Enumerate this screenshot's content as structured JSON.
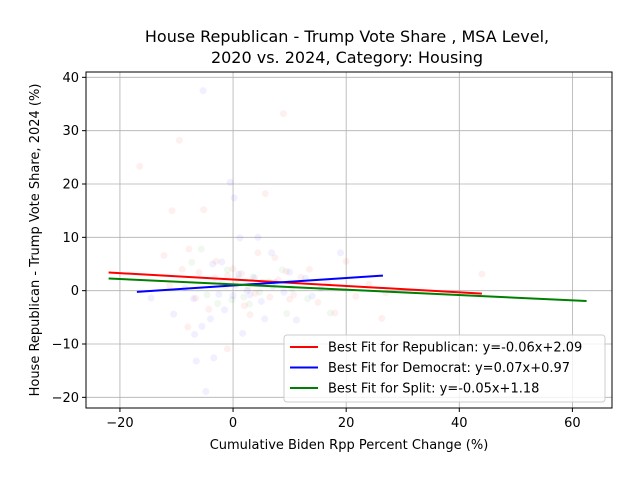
{
  "chart_data": {
    "type": "scatter",
    "title": "House Republican - Trump Vote Share , MSA Level,\n2020 vs. 2024, Category: Housing",
    "xlabel": "Cumulative Biden Rpp Percent Change (%)",
    "ylabel": "House Republican - Trump Vote Share, 2024 (%)",
    "xlim": [
      -26,
      67
    ],
    "ylim": [
      -22,
      41
    ],
    "xticks": [
      -20,
      0,
      20,
      40,
      60
    ],
    "yticks": [
      -20,
      -10,
      0,
      10,
      20,
      30,
      40
    ],
    "grid": true,
    "legend_position": "lower-right",
    "series": [
      {
        "name": "Republican",
        "color": "#ff0000",
        "points": [
          [
            -16.5,
            23.3
          ],
          [
            -9.5,
            28.2
          ],
          [
            -10.8,
            15
          ],
          [
            -5.2,
            15.2
          ],
          [
            5.7,
            18.2
          ],
          [
            8.9,
            33.2
          ],
          [
            -7.8,
            7.8
          ],
          [
            -12.2,
            6.6
          ],
          [
            -9.0,
            4.0
          ],
          [
            -6.0,
            3.4
          ],
          [
            -3.2,
            2.4
          ],
          [
            -2.0,
            1.5
          ],
          [
            -1.0,
            2.8
          ],
          [
            0.5,
            1.0
          ],
          [
            1.5,
            3.2
          ],
          [
            2.7,
            0.8
          ],
          [
            3.9,
            -0.5
          ],
          [
            5.2,
            1.6
          ],
          [
            6.5,
            -1.2
          ],
          [
            8.0,
            2.0
          ],
          [
            9.4,
            3.6
          ],
          [
            10.7,
            -0.8
          ],
          [
            12.0,
            2.5
          ],
          [
            13.5,
            4.0
          ],
          [
            15.0,
            -2.2
          ],
          [
            16.7,
            1.5
          ],
          [
            18.0,
            -4.2
          ],
          [
            20.0,
            5.5
          ],
          [
            21.7,
            -1.1
          ],
          [
            24.0,
            1.2
          ],
          [
            26.3,
            -5.2
          ],
          [
            27.0,
            -0.4
          ],
          [
            44.0,
            3.1
          ],
          [
            -1.0,
            -10.9
          ],
          [
            -4.3,
            -3.5
          ],
          [
            -8.0,
            -6.8
          ],
          [
            3.0,
            -4.5
          ],
          [
            7.4,
            6.2
          ],
          [
            -3.0,
            5.5
          ],
          [
            0.0,
            4.1
          ],
          [
            2.0,
            -2.8
          ],
          [
            -6.6,
            -1.4
          ],
          [
            10.0,
            -1.6
          ],
          [
            4.4,
            7.1
          ],
          [
            -11.2,
            1.0
          ]
        ],
        "fit": {
          "slope": -0.06,
          "intercept": 2.09,
          "x_range": [
            -22,
            44
          ],
          "label": "Best Fit for Republican: y=-0.06x+2.09"
        }
      },
      {
        "name": "Democrat",
        "color": "#0000ff",
        "points": [
          [
            -5.3,
            37.5
          ],
          [
            -0.5,
            20.3
          ],
          [
            0.2,
            17.4
          ],
          [
            1.2,
            9.9
          ],
          [
            4.4,
            10.0
          ],
          [
            -2.0,
            5.4
          ],
          [
            -3.6,
            5.0
          ],
          [
            1.0,
            3.1
          ],
          [
            3.8,
            2.4
          ],
          [
            6.8,
            7.1
          ],
          [
            7.5,
            1.5
          ],
          [
            10.0,
            3.5
          ],
          [
            12.8,
            2.3
          ],
          [
            15.5,
            0.5
          ],
          [
            19.0,
            7.1
          ],
          [
            -7.0,
            -1.5
          ],
          [
            -4.0,
            -5.3
          ],
          [
            -1.5,
            -3.6
          ],
          [
            1.7,
            -8.0
          ],
          [
            5.6,
            -5.3
          ],
          [
            11.2,
            -5.5
          ],
          [
            -4.8,
            -18.9
          ],
          [
            -3.4,
            -12.6
          ],
          [
            -6.5,
            -13.2
          ],
          [
            -10.5,
            -4.4
          ],
          [
            -2.5,
            -0.7
          ],
          [
            0.0,
            -0.9
          ],
          [
            2.5,
            0.0
          ],
          [
            5.0,
            -2.0
          ],
          [
            9.0,
            -0.3
          ],
          [
            14.0,
            -1.0
          ],
          [
            -14.5,
            -1.4
          ],
          [
            -8.5,
            0.5
          ],
          [
            3.0,
            -0.8
          ],
          [
            7.0,
            0.8
          ],
          [
            -5.5,
            -6.7
          ],
          [
            -6.8,
            -8.2
          ]
        ],
        "fit": {
          "slope": 0.07,
          "intercept": 0.97,
          "x_range": [
            -17,
            26.5
          ],
          "label": "Best Fit for Democrat: y=0.07x+0.97"
        }
      },
      {
        "name": "Split",
        "color": "#008000",
        "points": [
          [
            -7.3,
            5.3
          ],
          [
            -5.6,
            7.8
          ],
          [
            -2.7,
            -2.4
          ],
          [
            -1.3,
            0.9
          ],
          [
            0.8,
            2.2
          ],
          [
            2.9,
            -2.5
          ],
          [
            4.7,
            -0.3
          ],
          [
            6.3,
            1.7
          ],
          [
            8.7,
            3.9
          ],
          [
            10.4,
            0.4
          ],
          [
            13.2,
            -1.5
          ],
          [
            17.2,
            -4.2
          ],
          [
            -4.6,
            -0.8
          ],
          [
            -1.0,
            3.9
          ],
          [
            1.9,
            -1.2
          ],
          [
            3.5,
            2.6
          ],
          [
            -0.2,
            -1.7
          ],
          [
            9.5,
            -4.3
          ]
        ],
        "fit": {
          "slope": -0.05,
          "intercept": 1.18,
          "x_range": [
            -22,
            62.5
          ],
          "label": "Best Fit for Split: y=-0.05x+1.18"
        }
      }
    ]
  }
}
